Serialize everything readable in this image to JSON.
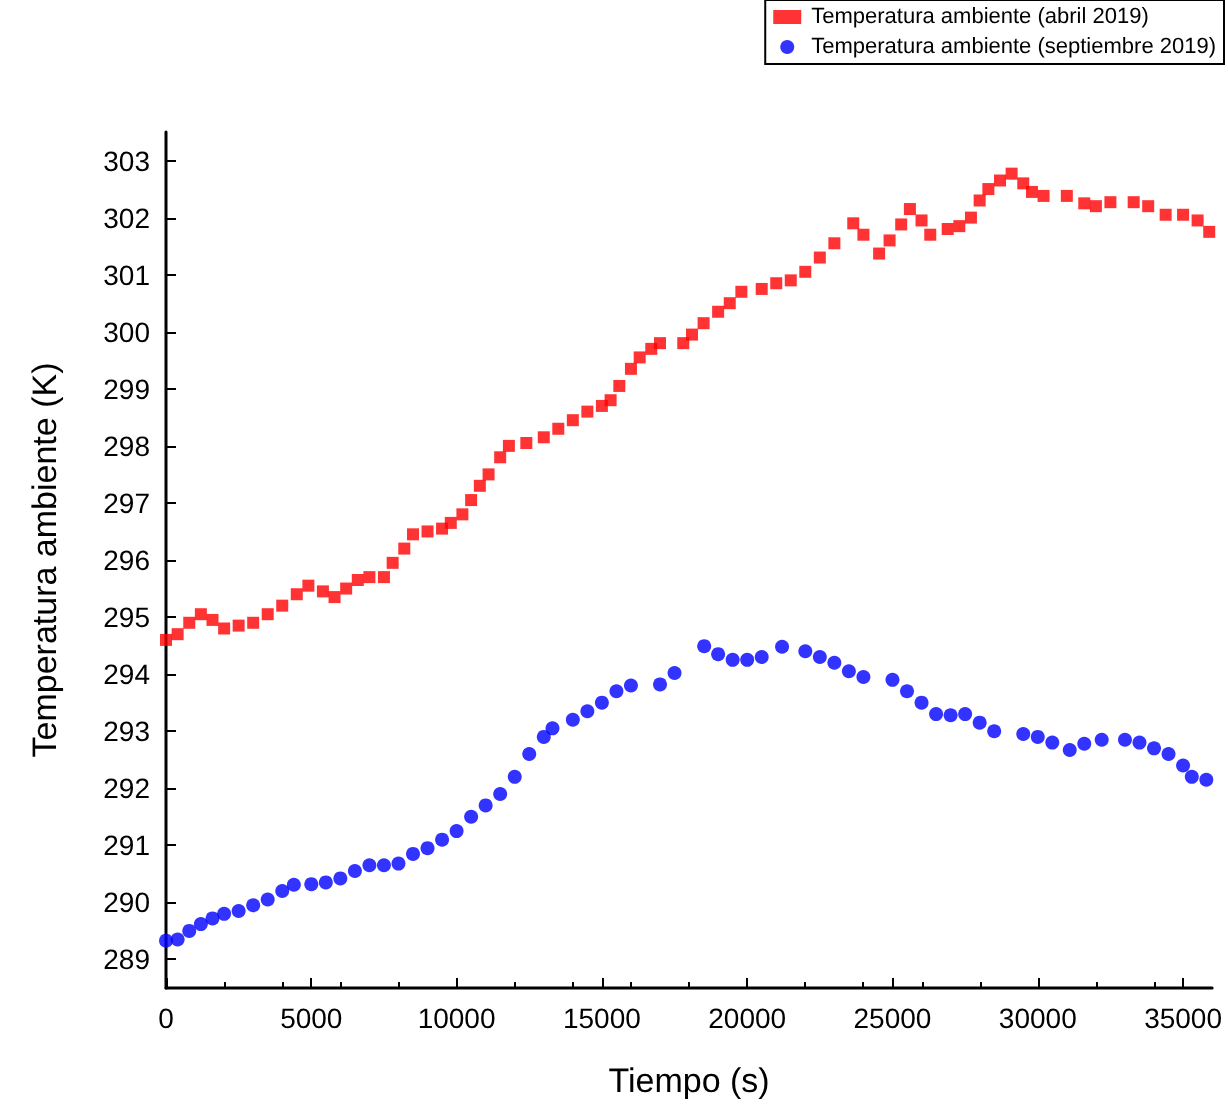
{
  "chart_data": {
    "type": "scatter",
    "xlabel": "Tiempo (s)",
    "ylabel": "Temperatura ambiente (K)",
    "xlim": [
      0,
      36000
    ],
    "ylim": [
      288.5,
      303.5
    ],
    "xticks": [
      0,
      5000,
      10000,
      15000,
      20000,
      25000,
      30000,
      35000
    ],
    "yticks": [
      289,
      290,
      291,
      292,
      293,
      294,
      295,
      296,
      297,
      298,
      299,
      300,
      301,
      302,
      303
    ],
    "grid": false,
    "legend": "top right",
    "series": [
      {
        "name": "Temperatura ambiente (abril 2019)",
        "color": "#ff0000",
        "marker": "square",
        "x": [
          0,
          400,
          800,
          1200,
          1600,
          2000,
          2500,
          3000,
          3500,
          4000,
          4500,
          4900,
          5400,
          5800,
          6200,
          6600,
          7000,
          7500,
          7800,
          8200,
          8500,
          9000,
          9500,
          9800,
          10200,
          10500,
          10800,
          11100,
          11500,
          11800,
          12400,
          13000,
          13500,
          14000,
          14500,
          15000,
          15300,
          15600,
          16000,
          16300,
          16700,
          17000,
          17800,
          18100,
          18500,
          19000,
          19400,
          19800,
          20500,
          21000,
          21500,
          22000,
          22500,
          23000,
          23650,
          24000,
          24540,
          24900,
          25300,
          25600,
          26000,
          26300,
          26900,
          27300,
          27700,
          28000,
          28300,
          28700,
          29100,
          29500,
          29800,
          30200,
          31000,
          31600,
          32000,
          32500,
          33300,
          33800,
          34400,
          35000,
          35500,
          35900
        ],
        "values": [
          294.6,
          294.7,
          294.9,
          295.05,
          294.95,
          294.8,
          294.85,
          294.9,
          295.05,
          295.2,
          295.4,
          295.55,
          295.45,
          295.35,
          295.5,
          295.65,
          295.7,
          295.7,
          295.95,
          296.2,
          296.45,
          296.5,
          296.55,
          296.65,
          296.8,
          297.05,
          297.3,
          297.5,
          297.8,
          298.0,
          298.05,
          298.15,
          298.3,
          298.45,
          298.6,
          298.7,
          298.8,
          299.05,
          299.35,
          299.55,
          299.7,
          299.8,
          299.8,
          299.95,
          300.15,
          300.35,
          300.5,
          300.7,
          300.75,
          300.85,
          300.9,
          301.05,
          301.3,
          301.55,
          301.9,
          301.7,
          301.37,
          301.6,
          301.88,
          302.15,
          301.95,
          301.7,
          301.8,
          301.85,
          302.0,
          302.3,
          302.5,
          302.65,
          302.77,
          302.6,
          302.45,
          302.38,
          302.38,
          302.25,
          302.2,
          302.27,
          302.27,
          302.2,
          302.05,
          302.05,
          301.95,
          301.75
        ]
      },
      {
        "name": "Temperatura ambiente (septiembre 2019)",
        "color": "#0000ff",
        "marker": "circle",
        "x": [
          0,
          400,
          800,
          1200,
          1600,
          2000,
          2500,
          3000,
          3500,
          4000,
          4400,
          5000,
          5500,
          6000,
          6500,
          7000,
          7500,
          8000,
          8500,
          9000,
          9500,
          10000,
          10500,
          11000,
          11500,
          12000,
          12500,
          13000,
          13300,
          14000,
          14500,
          15000,
          15500,
          16000,
          17000,
          17500,
          18520,
          19000,
          19500,
          20000,
          20500,
          21200,
          22000,
          22500,
          23000,
          23500,
          24000,
          25000,
          25500,
          26000,
          26500,
          27000,
          27500,
          28000,
          28500,
          29500,
          30000,
          30500,
          31100,
          31600,
          32200,
          33000,
          33500,
          34000,
          34500,
          35000,
          35300,
          35800
        ],
        "values": [
          289.33,
          289.35,
          289.5,
          289.62,
          289.72,
          289.8,
          289.85,
          289.95,
          290.05,
          290.2,
          290.31,
          290.32,
          290.35,
          290.42,
          290.55,
          290.65,
          290.65,
          290.68,
          290.85,
          290.95,
          291.1,
          291.25,
          291.5,
          291.7,
          291.9,
          292.2,
          292.6,
          292.9,
          293.05,
          293.2,
          293.35,
          293.5,
          293.7,
          293.8,
          293.82,
          294.02,
          294.49,
          294.35,
          294.25,
          294.25,
          294.3,
          294.48,
          294.4,
          294.3,
          294.2,
          294.05,
          293.95,
          293.9,
          293.7,
          293.5,
          293.3,
          293.28,
          293.3,
          293.15,
          293.0,
          292.95,
          292.9,
          292.8,
          292.67,
          292.78,
          292.85,
          292.85,
          292.8,
          292.7,
          292.6,
          292.4,
          292.2,
          292.15
        ]
      }
    ]
  }
}
